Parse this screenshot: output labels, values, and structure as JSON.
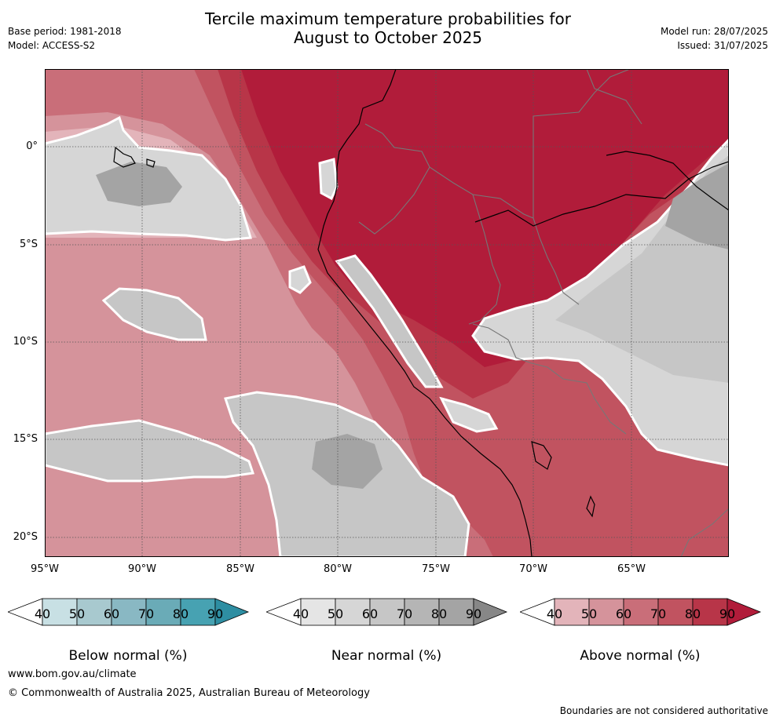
{
  "header": {
    "title_line1": "Tercile maximum temperature probabilities for",
    "title_line2": "August to October 2025",
    "base_period": "Base period: 1981-2018",
    "model": "Model: ACCESS-S2",
    "model_run": "Model run: 28/07/2025",
    "issued": "Issued: 31/07/2025"
  },
  "map": {
    "lat_labels": [
      "0°",
      "5°S",
      "10°S",
      "15°S",
      "20°S"
    ],
    "lon_labels": [
      "95°W",
      "90°W",
      "85°W",
      "80°W",
      "75°W",
      "70°W",
      "65°W"
    ]
  },
  "colorbars": [
    {
      "name": "Below normal (%)",
      "ticks": [
        "40",
        "50",
        "60",
        "70",
        "80",
        "90"
      ],
      "colors": [
        "#ffffff",
        "#c8e0e4",
        "#a8c9cf",
        "#89b8c3",
        "#6aabb7",
        "#47a2b2",
        "#2e8ea2"
      ]
    },
    {
      "name": "Near normal (%)",
      "ticks": [
        "40",
        "50",
        "60",
        "70",
        "80",
        "90"
      ],
      "colors": [
        "#ffffff",
        "#e5e5e5",
        "#d6d6d6",
        "#c6c6c6",
        "#b5b5b5",
        "#a4a4a4",
        "#878787"
      ]
    },
    {
      "name": "Above normal (%)",
      "ticks": [
        "40",
        "50",
        "60",
        "70",
        "80",
        "90"
      ],
      "colors": [
        "#ffffff",
        "#e3b4ba",
        "#d5939b",
        "#c96e79",
        "#c15360",
        "#b83548",
        "#b11c3a"
      ]
    }
  ],
  "footer": {
    "website": "www.bom.gov.au/climate",
    "copyright": "© Commonwealth of Australia 2025, Australian Bureau of Meteorology",
    "disclaimer": "Boundaries are not considered authoritative"
  }
}
